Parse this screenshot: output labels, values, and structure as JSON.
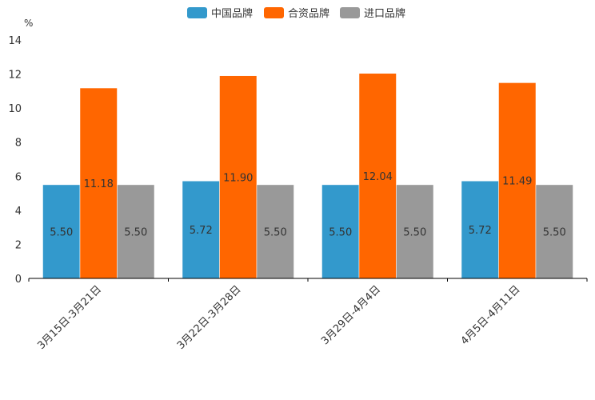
{
  "chart_data": {
    "type": "bar",
    "title": "",
    "xlabel": "",
    "ylabel": "%",
    "ylim": [
      0,
      14
    ],
    "yticks": [
      0,
      2,
      4,
      6,
      8,
      10,
      12,
      14
    ],
    "ytick_labels": [
      "0",
      "2",
      "4",
      "6",
      "8",
      "10",
      "12",
      "14"
    ],
    "categories": [
      "3月15日-3月21日",
      "3月22日-3月28日",
      "3月29日-4月4日",
      "4月5日-4月11日"
    ],
    "series": [
      {
        "name": "中国品牌",
        "color": "#3399CC",
        "values": [
          5.5,
          5.72,
          5.5,
          5.72
        ],
        "labels": [
          "5.50",
          "5.72",
          "5.50",
          "5.72"
        ]
      },
      {
        "name": "合资品牌",
        "color": "#FF6600",
        "values": [
          11.18,
          11.9,
          12.04,
          11.49
        ],
        "labels": [
          "11.18",
          "11.90",
          "12.04",
          "11.49"
        ]
      },
      {
        "name": "进口品牌",
        "color": "#999999",
        "values": [
          5.5,
          5.5,
          5.5,
          5.5
        ],
        "labels": [
          "5.50",
          "5.50",
          "5.50",
          "5.50"
        ]
      }
    ],
    "legend_position": "top-center",
    "grid": false
  }
}
